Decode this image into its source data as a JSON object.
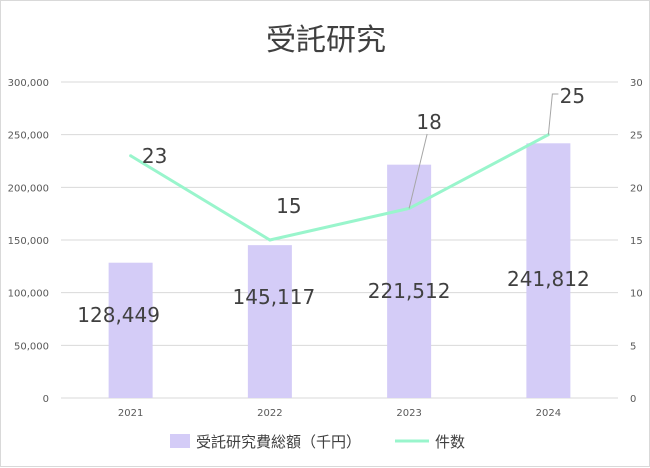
{
  "chart_data": {
    "type": "bar",
    "title": "受託研究",
    "categories": [
      "2021",
      "2022",
      "2023",
      "2024"
    ],
    "series": [
      {
        "name": "受託研究費総額（千円）",
        "type": "bar",
        "axis": "left",
        "values": [
          128449,
          145117,
          221512,
          241812
        ],
        "labels": [
          "128,449",
          "145,117",
          "221,512",
          "241,812"
        ]
      },
      {
        "name": "件数",
        "type": "line",
        "axis": "right",
        "values": [
          23,
          15,
          18,
          25
        ],
        "labels": [
          "23",
          "15",
          "18",
          "25"
        ]
      }
    ],
    "y_left": {
      "lim": [
        0,
        300000
      ],
      "ticks": [
        "0",
        "50,000",
        "100,000",
        "150,000",
        "200,000",
        "250,000",
        "300,000"
      ]
    },
    "y_right": {
      "lim": [
        0,
        30
      ],
      "ticks": [
        "0",
        "5",
        "10",
        "15",
        "20",
        "25",
        "30"
      ]
    },
    "grid": true,
    "legend": "bottom",
    "colors": {
      "bar": "#d4ccf7",
      "line": "#99f5cc",
      "grid": "#d9d9d9",
      "text": "#404040",
      "leader": "#a6a6a6"
    }
  }
}
